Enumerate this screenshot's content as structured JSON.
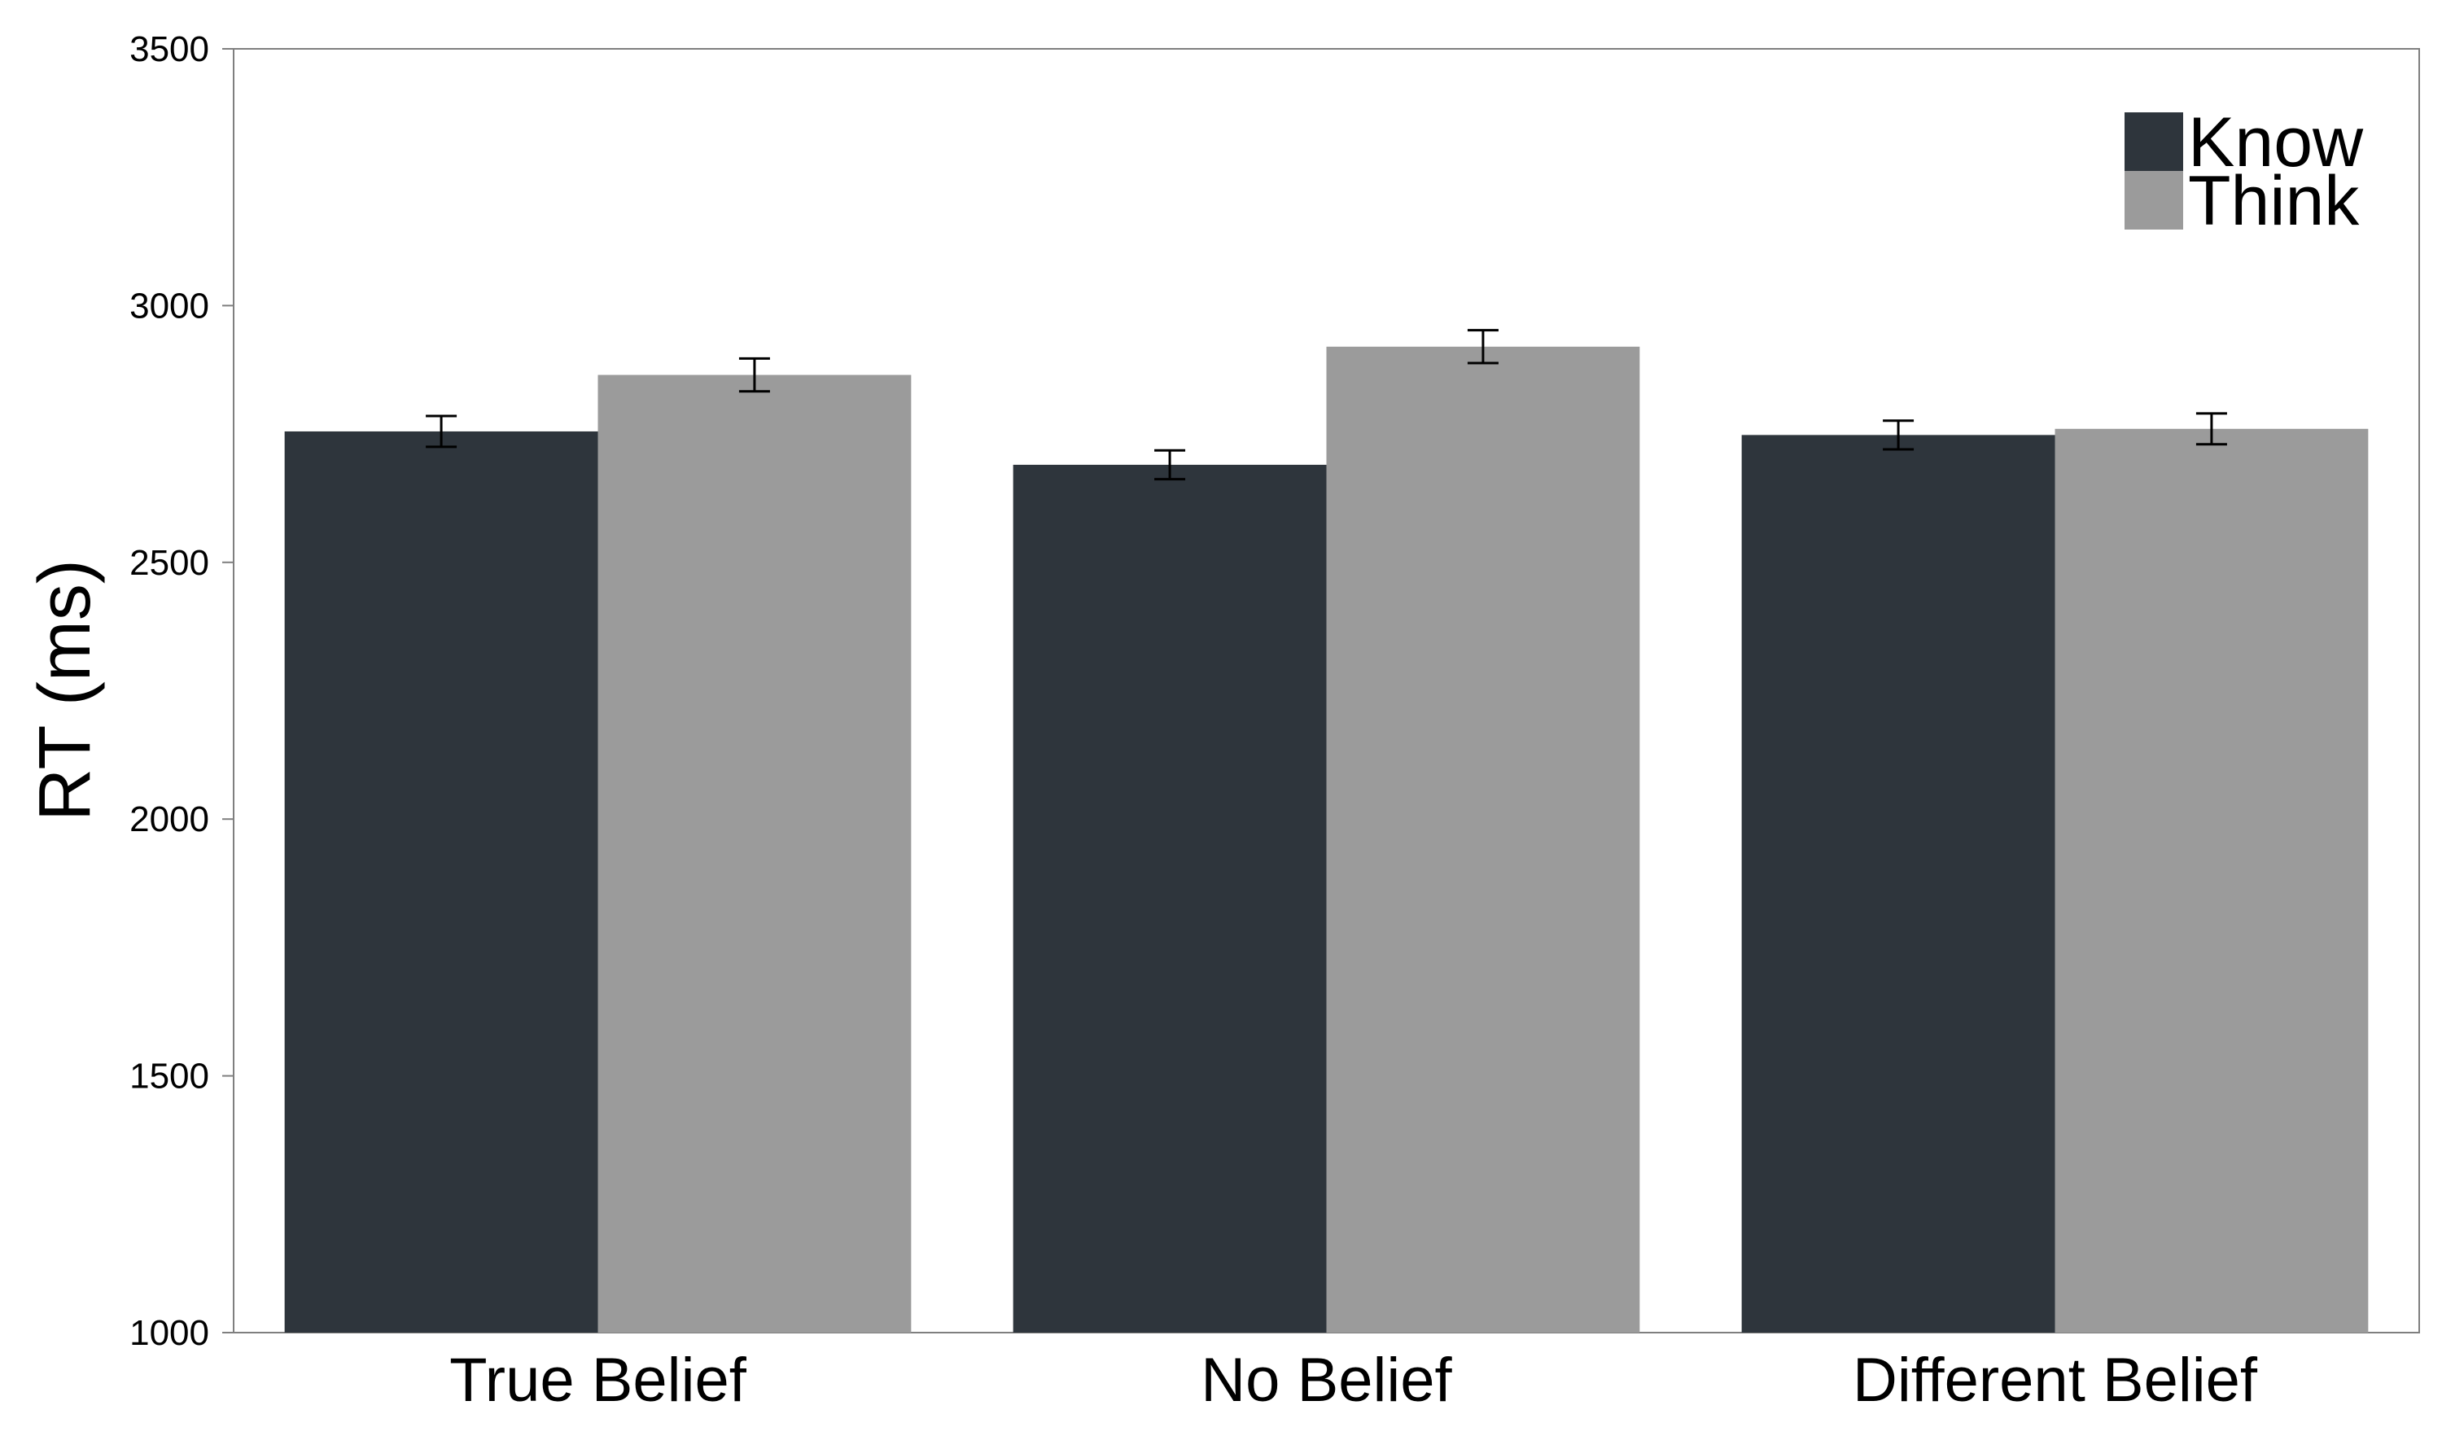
{
  "chart_data": {
    "type": "bar",
    "title": "",
    "xlabel": "",
    "ylabel": "RT (ms)",
    "ylim": [
      1000,
      3500
    ],
    "yticks": [
      1000,
      1500,
      2000,
      2500,
      3000,
      3500
    ],
    "grid": false,
    "legend_position": "top-right",
    "categories": [
      "True Belief",
      "No Belief",
      "Different Belief"
    ],
    "series": [
      {
        "name": "Know",
        "color": "#2e353c",
        "values": [
          2755,
          2690,
          2748
        ],
        "errors": [
          30,
          28,
          28
        ]
      },
      {
        "name": "Think",
        "color": "#9b9b9b",
        "values": [
          2865,
          2920,
          2760
        ],
        "errors": [
          32,
          32,
          30
        ]
      }
    ]
  }
}
